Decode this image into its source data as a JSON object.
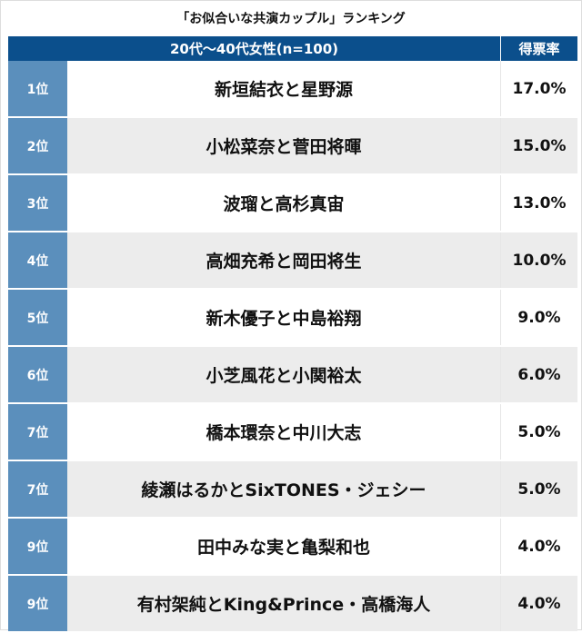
{
  "title": "「お似合いな共演カップル」ランキング",
  "header": {
    "group": "20代〜40代女性(n=100)",
    "rate": "得票率"
  },
  "rows": [
    {
      "rank": "1位",
      "name": "新垣結衣と星野源",
      "rate": "17.0%"
    },
    {
      "rank": "2位",
      "name": "小松菜奈と菅田将暉",
      "rate": "15.0%"
    },
    {
      "rank": "3位",
      "name": "波瑠と高杉真宙",
      "rate": "13.0%"
    },
    {
      "rank": "4位",
      "name": "高畑充希と岡田将生",
      "rate": "10.0%"
    },
    {
      "rank": "5位",
      "name": "新木優子と中島裕翔",
      "rate": "9.0%"
    },
    {
      "rank": "6位",
      "name": "小芝風花と小関裕太",
      "rate": "6.0%"
    },
    {
      "rank": "7位",
      "name": "橋本環奈と中川大志",
      "rate": "5.0%"
    },
    {
      "rank": "7位",
      "name": "綾瀬はるかとSixTONES・ジェシー",
      "rate": "5.0%"
    },
    {
      "rank": "9位",
      "name": "田中みな実と亀梨和也",
      "rate": "4.0%"
    },
    {
      "rank": "9位",
      "name": "有村架純とKing&Prince・高橋海人",
      "rate": "4.0%"
    }
  ]
}
